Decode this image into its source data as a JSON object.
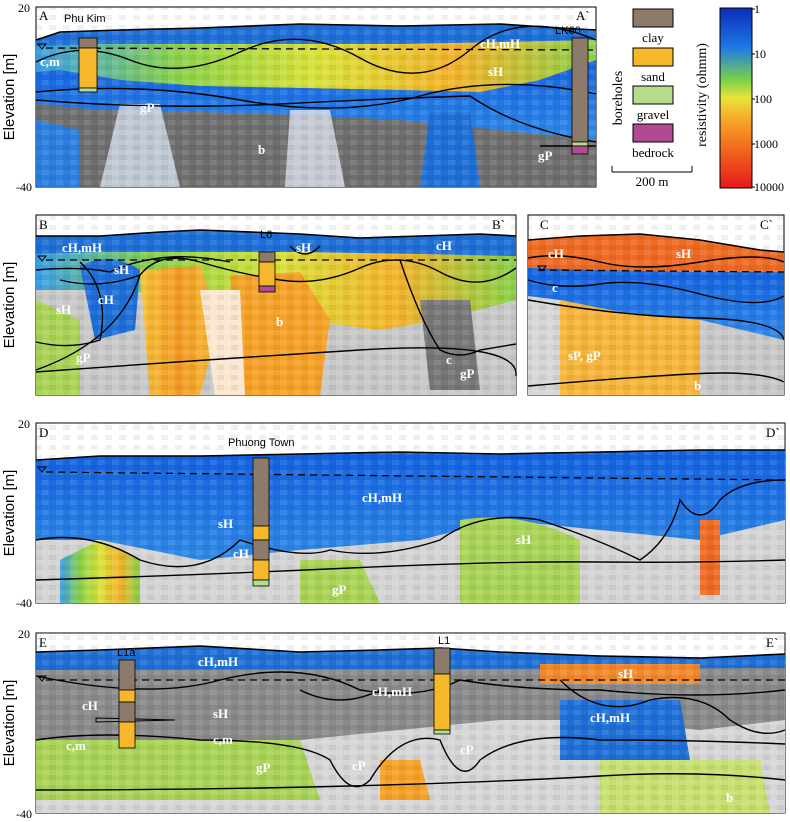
{
  "axis": {
    "ylabel": "Elevation [m]"
  },
  "sections": [
    {
      "id": "A",
      "label_left": "A",
      "label_right": "A`",
      "y_top": "20",
      "y_bottom": "-40",
      "boreholes": [
        "Phu Kim",
        "LK60"
      ],
      "units": [
        "c,m",
        "cH,mH",
        "sH",
        "gP",
        "b",
        "gP"
      ]
    },
    {
      "id": "B",
      "label_left": "B",
      "label_right": "B`",
      "boreholes": [
        "L6"
      ],
      "units": [
        "cH,mH",
        "sH",
        "sH",
        "cH",
        "sH",
        "cH",
        "b",
        "gP",
        "c",
        "gP"
      ]
    },
    {
      "id": "C",
      "label_left": "C",
      "label_right": "C`",
      "units": [
        "cH",
        "sH",
        "c",
        "sP, gP",
        "b"
      ]
    },
    {
      "id": "D",
      "label_left": "D",
      "label_right": "D`",
      "y_top": "20",
      "y_bottom": "-40",
      "boreholes": [
        "Phuong Town"
      ],
      "units": [
        "cH,mH",
        "sH",
        "cH",
        "sH",
        "gP"
      ]
    },
    {
      "id": "E",
      "label_left": "E",
      "label_right": "E`",
      "y_top": "20",
      "y_bottom": "-40",
      "boreholes": [
        "L1a",
        "L1"
      ],
      "units": [
        "cH,mH",
        "cH",
        "sH",
        "c,m",
        "c,m",
        "gP",
        "cH,mH",
        "cP",
        "cP",
        "sH",
        "cH,mH",
        "b"
      ]
    }
  ],
  "legend": {
    "boreholes_title": "boreholes",
    "items": [
      {
        "label": "clay",
        "color": "#8c7b6b"
      },
      {
        "label": "sand",
        "color": "#f5b82a"
      },
      {
        "label": "gravel",
        "color": "#b5dc8c"
      },
      {
        "label": "bedrock",
        "color": "#b04a92"
      }
    ],
    "scale_label": "200 m",
    "colorbar_title": "resistivity (ohmm)",
    "colorbar_ticks": [
      "1",
      "10",
      "100",
      "1000",
      "10000"
    ]
  }
}
